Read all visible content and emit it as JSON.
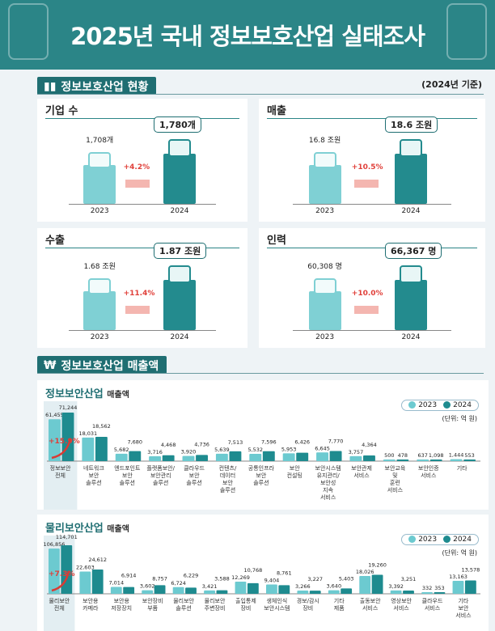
{
  "header": {
    "title": "2025년 국내 정보보호산업 실태조사"
  },
  "section1": {
    "title": "정보보호산업 현황",
    "basis": "(2024년 기준)"
  },
  "overview": [
    {
      "title": "기업 수",
      "y2023": "1,708개",
      "y2024": "1,780개",
      "growth": "+4.2%",
      "icon": "buildings-icon"
    },
    {
      "title": "매출",
      "y2023": "16.8 조원",
      "y2024": "18.6 조원",
      "growth": "+10.5%",
      "icon": "money-icon"
    },
    {
      "title": "수출",
      "y2023": "1.68 조원",
      "y2024": "1.87 조원",
      "growth": "+11.4%",
      "icon": "airplane-icon"
    },
    {
      "title": "인력",
      "y2023": "60,308 명",
      "y2024": "66,367 명",
      "growth": "+10.0%",
      "icon": "person-icon"
    }
  ],
  "years": [
    "2023",
    "2024"
  ],
  "section2": {
    "title": "정보보호산업 매출액"
  },
  "colors": {
    "y2023": "#6ccad0",
    "y2024": "#1e8b8f",
    "accent": "#e0403a"
  },
  "chart_data": [
    {
      "type": "bar",
      "title": "정보보안산업",
      "subtitle": "매출액",
      "unit": "(단위: 억 원)",
      "highlight": "+15.9%",
      "categories": [
        "정보보안 전체",
        "네트워크 보안 솔루션",
        "엔드포인트 보안 솔루션",
        "플랫폼보안/ 보안관리 솔루션",
        "클라우드 보안 솔루션",
        "컨텐츠/ 데이터 보안 솔루션",
        "공통인프라 보안 솔루션",
        "보안 컨설팅",
        "보안시스템 유지관리/ 보안성 지속 서비스",
        "보안관제 서비스",
        "보안교육 및 훈련 서비스",
        "보안인증 서비스",
        "기타"
      ],
      "series": [
        {
          "name": "2023",
          "values": [
            61455,
            18031,
            5682,
            3716,
            3920,
            5639,
            5532,
            5953,
            6645,
            3757,
            500,
            637,
            1444
          ]
        },
        {
          "name": "2024",
          "values": [
            71244,
            18562,
            7680,
            4468,
            4736,
            7513,
            7596,
            6426,
            7770,
            4364,
            478,
            1098,
            553
          ]
        }
      ]
    },
    {
      "type": "bar",
      "title": "물리보안산업",
      "subtitle": "매출액",
      "unit": "(단위: 억 원)",
      "highlight": "+7.3%",
      "categories": [
        "물리보안 전체",
        "보안용 카메라",
        "보안용 저장장치",
        "보안장비 부품",
        "물리보안 솔루션",
        "물리보안 주변장비",
        "출입통제 장비",
        "생체인식 보안시스템",
        "경보/감시 장비",
        "기타 제품",
        "출동보안 서비스",
        "영상보안 서비스",
        "클라우드 서비스",
        "기타 보안 서비스"
      ],
      "series": [
        {
          "name": "2023",
          "values": [
            106856,
            22603,
            7014,
            3602,
            6724,
            3421,
            12269,
            9404,
            3266,
            3640,
            18026,
            3392,
            332,
            13163
          ]
        },
        {
          "name": "2024",
          "values": [
            114701,
            24612,
            6914,
            8757,
            6229,
            3588,
            10768,
            8761,
            3227,
            5403,
            19260,
            3251,
            353,
            13578
          ]
        }
      ]
    }
  ]
}
